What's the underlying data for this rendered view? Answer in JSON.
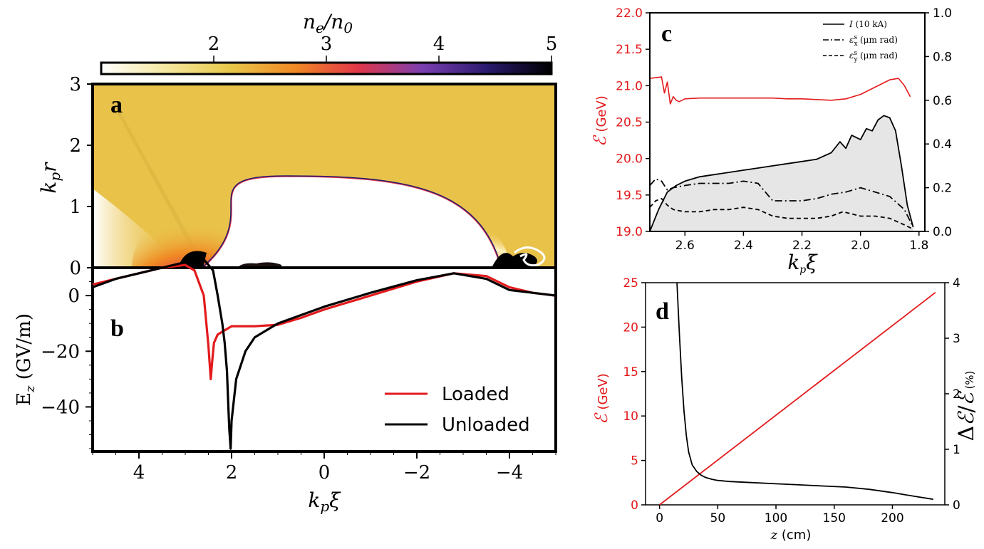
{
  "colorbar": {
    "label": "n_e/n_0",
    "ticks": [
      "2",
      "3",
      "4",
      "5"
    ],
    "range": [
      1,
      5
    ],
    "colors": [
      "#ffffff",
      "#f5e8a0",
      "#e8c84a",
      "#f08a24",
      "#e0364a",
      "#7a3fb0",
      "#2a1a6e",
      "#000000"
    ]
  },
  "chart_data": [
    {
      "id": "a",
      "type": "heatmap",
      "panel_label": "a",
      "ylabel": "k_p r",
      "ylim": [
        0,
        3
      ],
      "yticks": [
        "0",
        "1",
        "2",
        "3"
      ],
      "xlim": [
        5,
        -5
      ],
      "bubble": {
        "front_xi": 2.6,
        "back_xi": -3.8,
        "peak_xi": 0.8,
        "peak_r": 1.48
      }
    },
    {
      "id": "b",
      "type": "line",
      "panel_label": "b",
      "xlabel": "k_p ξ",
      "ylabel": "E_z (GV/m)",
      "xlim": [
        5,
        -5
      ],
      "ylim": [
        -56,
        10
      ],
      "xticks": [
        "4",
        "2",
        "0",
        "−2",
        "−4"
      ],
      "yticks": [
        "0",
        "−20",
        "−40"
      ],
      "series": [
        {
          "name": "Loaded",
          "color": "#e31a1c",
          "x": [
            5,
            4.5,
            4.0,
            3.5,
            3.0,
            2.8,
            2.6,
            2.5,
            2.45,
            2.42,
            2.38,
            2.3,
            2.2,
            2.0,
            1.8,
            1.5,
            1.0,
            0.5,
            0.0,
            -1.0,
            -2.0,
            -2.8,
            -3.5,
            -4.0,
            -4.5,
            -5.0
          ],
          "y": [
            4,
            6,
            8,
            10,
            11,
            9,
            0,
            -18,
            -30,
            -24,
            -17,
            -14,
            -13,
            -11,
            -11,
            -11,
            -10.5,
            -8,
            -5,
            0,
            5,
            8,
            7,
            3,
            1,
            0
          ]
        },
        {
          "name": "Unloaded",
          "color": "#000000",
          "x": [
            5,
            4.5,
            4.0,
            3.5,
            3.0,
            2.8,
            2.6,
            2.4,
            2.3,
            2.2,
            2.15,
            2.1,
            2.07,
            2.05,
            2.02,
            2.0,
            1.9,
            1.7,
            1.5,
            1.0,
            0.5,
            0.0,
            -1.0,
            -2.0,
            -2.8,
            -3.5,
            -4.0,
            -4.5,
            -5.0
          ],
          "y": [
            3,
            6,
            8,
            10,
            12,
            13.5,
            13,
            9,
            0,
            -10,
            -17,
            -27,
            -40,
            -48,
            -55,
            -45,
            -30,
            -20,
            -15,
            -10,
            -7,
            -4,
            1,
            5.5,
            8,
            6,
            2,
            1,
            0
          ]
        }
      ],
      "legend": [
        "Loaded",
        "Unloaded"
      ],
      "legend_position": "lower-right"
    },
    {
      "id": "c",
      "type": "line",
      "panel_label": "c",
      "xlabel": "k_p ξ",
      "ylabel": "ℰ (GeV)",
      "xlim": [
        2.72,
        1.78
      ],
      "ylim": [
        19,
        22
      ],
      "y2lim": [
        0,
        1
      ],
      "xticks": [
        "2.6",
        "2.4",
        "2.2",
        "2.0",
        "1.8"
      ],
      "yticks": [
        "19.0",
        "19.5",
        "20.0",
        "20.5",
        "21.0",
        "21.5",
        "22.0"
      ],
      "y2ticks": [
        "0.0",
        "0.2",
        "0.4",
        "0.6",
        "0.8",
        "1.0"
      ],
      "series": [
        {
          "name": "I (10 kA)",
          "axis": "right",
          "filled": true,
          "x": [
            2.72,
            2.69,
            2.66,
            2.63,
            2.6,
            2.55,
            2.5,
            2.45,
            2.4,
            2.35,
            2.3,
            2.25,
            2.2,
            2.15,
            2.1,
            2.07,
            2.05,
            2.03,
            2.0,
            1.98,
            1.96,
            1.94,
            1.92,
            1.9,
            1.88,
            1.86,
            1.84,
            1.82
          ],
          "y": [
            0.0,
            0.1,
            0.18,
            0.21,
            0.23,
            0.25,
            0.26,
            0.27,
            0.28,
            0.29,
            0.3,
            0.31,
            0.32,
            0.33,
            0.36,
            0.41,
            0.38,
            0.44,
            0.42,
            0.47,
            0.46,
            0.51,
            0.53,
            0.52,
            0.46,
            0.3,
            0.12,
            0.02
          ]
        },
        {
          "name": "ε_x^s (μm rad)",
          "axis": "right",
          "dash": "10,4,2,4",
          "x": [
            2.72,
            2.7,
            2.68,
            2.66,
            2.64,
            2.6,
            2.55,
            2.5,
            2.45,
            2.4,
            2.35,
            2.3,
            2.25,
            2.2,
            2.15,
            2.1,
            2.05,
            2.0,
            1.95,
            1.9,
            1.85,
            1.82
          ],
          "y": [
            0.21,
            0.24,
            0.23,
            0.19,
            0.2,
            0.21,
            0.22,
            0.22,
            0.22,
            0.23,
            0.22,
            0.14,
            0.14,
            0.14,
            0.15,
            0.17,
            0.18,
            0.2,
            0.18,
            0.16,
            0.1,
            0.02
          ]
        },
        {
          "name": "ε_y^s (μm rad)",
          "axis": "right",
          "dash": "6,4",
          "x": [
            2.72,
            2.7,
            2.68,
            2.66,
            2.64,
            2.6,
            2.55,
            2.5,
            2.45,
            2.4,
            2.35,
            2.3,
            2.25,
            2.2,
            2.15,
            2.1,
            2.06,
            2.03,
            2.0,
            1.95,
            1.9,
            1.85,
            1.82
          ],
          "y": [
            0.11,
            0.14,
            0.15,
            0.12,
            0.1,
            0.09,
            0.09,
            0.1,
            0.1,
            0.11,
            0.1,
            0.07,
            0.06,
            0.06,
            0.06,
            0.07,
            0.09,
            0.08,
            0.07,
            0.07,
            0.06,
            0.03,
            0.01
          ]
        },
        {
          "name": "ℰ (GeV)",
          "axis": "left",
          "color": "#e31a1c",
          "x": [
            2.72,
            2.68,
            2.67,
            2.66,
            2.65,
            2.64,
            2.63,
            2.62,
            2.6,
            2.55,
            2.5,
            2.45,
            2.4,
            2.35,
            2.3,
            2.25,
            2.2,
            2.15,
            2.1,
            2.05,
            2.0,
            1.95,
            1.9,
            1.87,
            1.85,
            1.83
          ],
          "y": [
            21.1,
            21.12,
            20.9,
            21.05,
            20.75,
            20.85,
            20.8,
            20.78,
            20.82,
            20.83,
            20.83,
            20.83,
            20.83,
            20.83,
            20.83,
            20.82,
            20.82,
            20.81,
            20.8,
            20.82,
            20.88,
            20.98,
            21.08,
            21.1,
            21.0,
            20.85
          ]
        }
      ],
      "legend": [
        "I (10 kA)",
        "ε_x^s (μm rad)",
        "ε_y^s (μm rad)"
      ],
      "legend_position": "top-right"
    },
    {
      "id": "d",
      "type": "line",
      "panel_label": "d",
      "xlabel": "z (cm)",
      "ylabel": "ℰ (GeV)",
      "y2label": "Δℰ/ℰ (%)",
      "xlim": [
        -12,
        245
      ],
      "ylim": [
        0,
        25
      ],
      "y2lim": [
        0,
        4
      ],
      "xticks": [
        "0",
        "50",
        "100",
        "150",
        "200"
      ],
      "yticks": [
        "0",
        "5",
        "10",
        "15",
        "20",
        "25"
      ],
      "y2ticks": [
        "0",
        "1",
        "2",
        "3",
        "4"
      ],
      "series": [
        {
          "name": "ℰ (GeV)",
          "axis": "left",
          "color": "#e31a1c",
          "x": [
            0,
            237
          ],
          "y": [
            0,
            23.9
          ]
        },
        {
          "name": "Δℰ/ℰ (%)",
          "axis": "right",
          "color": "#000000",
          "x": [
            15,
            17,
            19,
            21,
            23,
            25,
            28,
            32,
            36,
            40,
            45,
            50,
            60,
            80,
            100,
            120,
            140,
            160,
            180,
            200,
            220,
            235
          ],
          "y": [
            4.0,
            3.1,
            2.3,
            1.7,
            1.25,
            0.95,
            0.72,
            0.6,
            0.53,
            0.49,
            0.46,
            0.44,
            0.42,
            0.4,
            0.38,
            0.36,
            0.34,
            0.32,
            0.28,
            0.22,
            0.15,
            0.1
          ]
        }
      ]
    }
  ]
}
